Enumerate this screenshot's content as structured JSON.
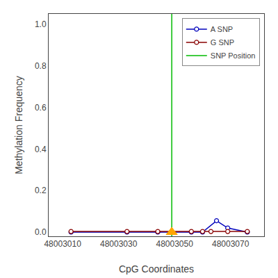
{
  "chart_data": {
    "type": "line",
    "xlabel": "CpG Coordinates",
    "ylabel": "Methylation Frequency",
    "xlim": [
      48003005,
      48003082
    ],
    "ylim": [
      -0.02,
      1.05
    ],
    "xticks": [
      48003010,
      48003030,
      48003050,
      48003070
    ],
    "yticks": [
      {
        "value": 0.0,
        "label": "0.0"
      },
      0.2,
      0.4,
      0.6,
      0.8,
      {
        "value": 1.0,
        "label": "1.0"
      }
    ],
    "grid": false,
    "legend": "upper right",
    "series": [
      {
        "name": "A SNP",
        "type": "line",
        "marker": "circle",
        "color": "#0000bb",
        "x": [
          48003013,
          48003033,
          48003044,
          48003056,
          48003060,
          48003065,
          48003069,
          48003076
        ],
        "values": [
          0.0,
          0.0,
          0.0,
          0.0,
          0.0,
          0.055,
          0.02,
          0.0
        ]
      },
      {
        "name": "G SNP",
        "type": "line",
        "marker": "circle",
        "color": "#880000",
        "x": [
          48003013,
          48003033,
          48003044,
          48003056,
          48003060,
          48003063,
          48003069,
          48003076
        ],
        "values": [
          0.003,
          0.003,
          0.003,
          0.003,
          0.003,
          0.003,
          0.003,
          0.003
        ]
      },
      {
        "name": "SNP Position",
        "type": "vline",
        "color": "#00bb00",
        "x": 48003049
      }
    ],
    "markers": [
      {
        "x": 48003049,
        "y": 0.0,
        "color": "#ffa500",
        "marker": "triangle-up"
      }
    ]
  }
}
